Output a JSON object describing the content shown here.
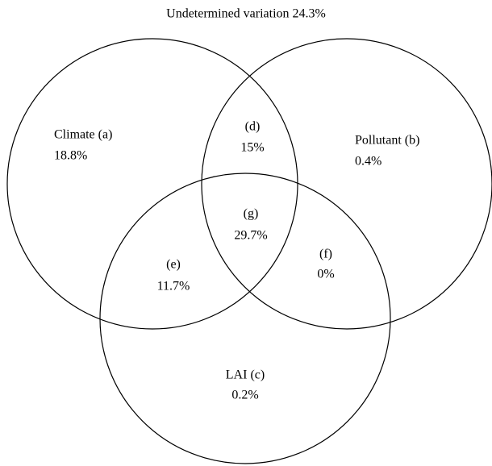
{
  "title": "Undetermined variation 24.3%",
  "regions": [
    {
      "label": "Climate (a)",
      "value": "18.8%"
    },
    {
      "label": "Pollutant (b)",
      "value": "0.4%"
    },
    {
      "label": "LAI (c)",
      "value": "0.2%"
    },
    {
      "label": "(d)",
      "value": "15%"
    },
    {
      "label": "(e)",
      "value": "11.7%"
    },
    {
      "label": "(f)",
      "value": "0%"
    },
    {
      "label": "(g)",
      "value": "29.7%"
    }
  ]
}
